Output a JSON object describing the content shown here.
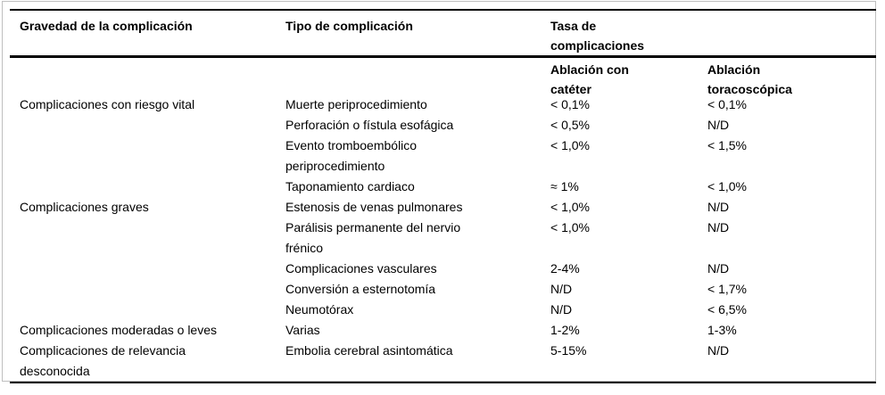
{
  "table": {
    "header": {
      "severity": "Gravedad de la complicación",
      "type": "Tipo de complicación",
      "rate_group": "Tasa de\ncomplicaciones",
      "sub_catheter": "Ablación con\ncatéter",
      "sub_thoracoscopic": "Ablación\ntoracoscópica"
    },
    "rows": [
      {
        "severity": "Complicaciones con riesgo vital",
        "type": "Muerte periprocedimiento",
        "catheter": "< 0,1%",
        "thoracoscopic": "< 0,1%"
      },
      {
        "severity": "",
        "type": "Perforación o fístula esofágica",
        "catheter": "< 0,5%",
        "thoracoscopic": "N/D"
      },
      {
        "severity": "",
        "type": "Evento tromboembólico\nperiprocedimiento",
        "catheter": "< 1,0%",
        "thoracoscopic": "< 1,5%"
      },
      {
        "severity": "",
        "type": "Taponamiento cardiaco",
        "catheter": "≈ 1%",
        "thoracoscopic": "< 1,0%"
      },
      {
        "severity": "Complicaciones graves",
        "type": "Estenosis de venas pulmonares",
        "catheter": "< 1,0%",
        "thoracoscopic": "N/D"
      },
      {
        "severity": "",
        "type": "Parálisis permanente del nervio\nfrénico",
        "catheter": "< 1,0%",
        "thoracoscopic": "N/D"
      },
      {
        "severity": "",
        "type": "Complicaciones vasculares",
        "catheter": "2-4%",
        "thoracoscopic": "N/D"
      },
      {
        "severity": "",
        "type": "Conversión a esternotomía",
        "catheter": "N/D",
        "thoracoscopic": "< 1,7%"
      },
      {
        "severity": "",
        "type": "Neumotórax",
        "catheter": "N/D",
        "thoracoscopic": "< 6,5%"
      },
      {
        "severity": "Complicaciones moderadas o leves",
        "type": "Varias",
        "catheter": "1-2%",
        "thoracoscopic": "1-3%"
      },
      {
        "severity": "Complicaciones de relevancia\ndesconocida",
        "type": "Embolia cerebral asintomática",
        "catheter": "5-15%",
        "thoracoscopic": "N/D"
      }
    ],
    "colors": {
      "text": "#000000",
      "rule": "#000000",
      "frame": "#bfbfbf",
      "background": "#ffffff"
    }
  }
}
